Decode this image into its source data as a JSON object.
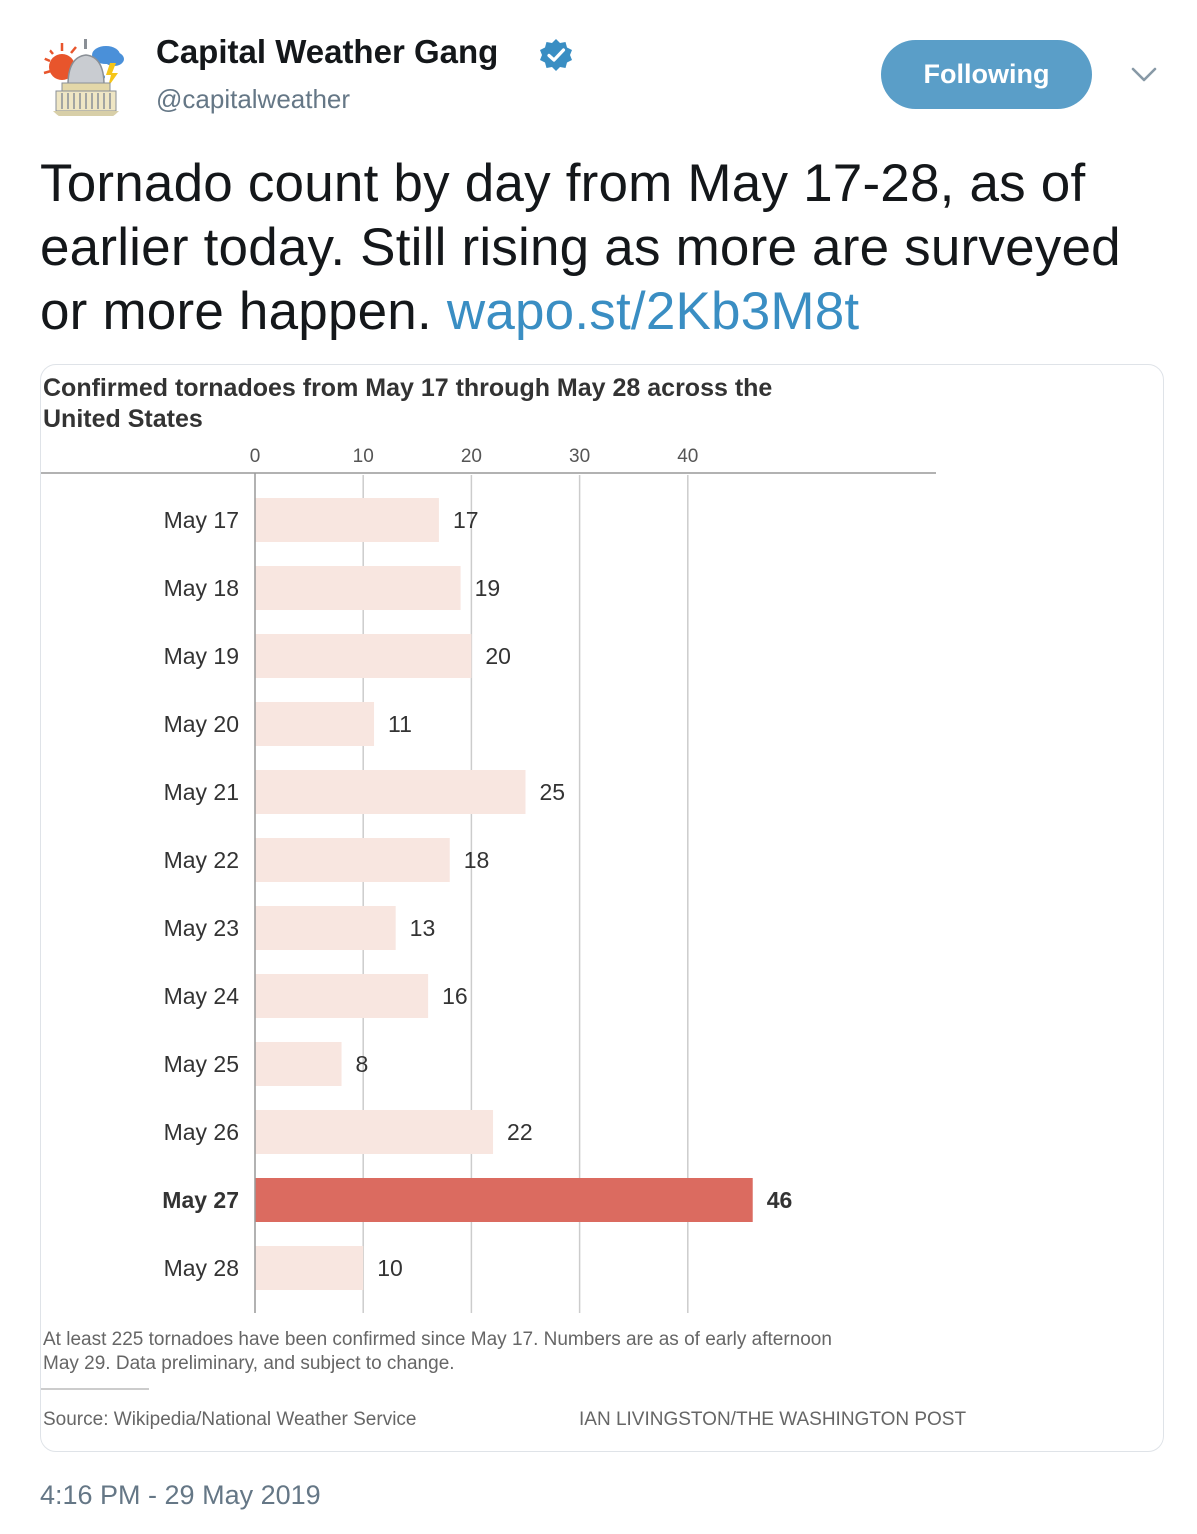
{
  "tweet": {
    "display_name": "Capital Weather Gang",
    "handle": "@capitalweather",
    "follow_label": "Following",
    "text_parts": [
      "Tornado count by day from May 17-28, as of earlier today. Still rising as more are surveyed or more happen. "
    ],
    "link_text": "wapo.st/2Kb3M8t",
    "timestamp": "4:16 PM - 29 May 2019"
  },
  "colors": {
    "follow_button": "#5a9ec8",
    "link": "#3a8ec3",
    "verified": "#3a8ec3",
    "bar": "#f8e6e0",
    "bar_highlight": "#db6b60"
  },
  "icons": {
    "avatar": "capitol-weather-logo",
    "verified": "verified-badge-icon",
    "menu": "chevron-down-icon"
  },
  "chart_data": {
    "type": "bar",
    "orientation": "horizontal",
    "title": "Confirmed tornadoes from May 17 through May 28 across the United States",
    "title_lines": [
      "Confirmed tornadoes from May 17 through May 28 across the",
      "United States"
    ],
    "categories": [
      "May 17",
      "May 18",
      "May 19",
      "May 20",
      "May 21",
      "May 22",
      "May 23",
      "May 24",
      "May 25",
      "May 26",
      "May 27",
      "May 28"
    ],
    "values": [
      17,
      19,
      20,
      11,
      25,
      18,
      13,
      16,
      8,
      22,
      46,
      10
    ],
    "highlight_category": "May 27",
    "xticks": [
      0,
      10,
      20,
      30,
      40
    ],
    "xlim": [
      0,
      50
    ],
    "xlabel": "",
    "ylabel": "",
    "grid": true,
    "note_lines": [
      "At least 225 tornadoes have been confirmed since May 17. Numbers are as of early afternoon",
      "May 29. Data preliminary, and subject to change."
    ],
    "source": "Source: Wikipedia/National Weather Service",
    "credit": "IAN LIVINGSTON/THE WASHINGTON POST"
  }
}
